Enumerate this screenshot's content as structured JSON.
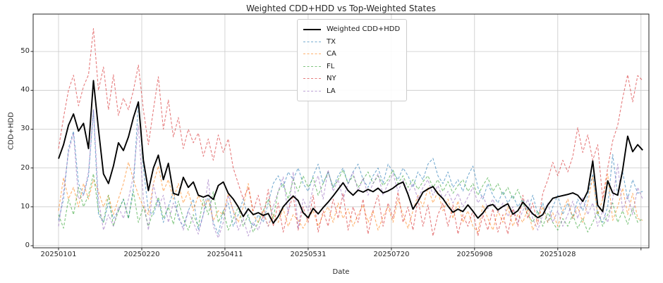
{
  "title": "Weighted CDD+HDD vs Top-Weighted States",
  "chart_data": {
    "type": "line",
    "title": "Weighted CDD+HDD vs Top-Weighted States",
    "xlabel": "Date",
    "ylabel": "CDD+HDD",
    "grid": "on",
    "legend_position": "upper center",
    "x_start_date": "20250101",
    "x_step_days": 3,
    "xlim": [
      -15.25,
      354.75
    ],
    "ylim": [
      -0.54,
      59.62
    ],
    "y_ticks": [
      0,
      10,
      20,
      30,
      40,
      50
    ],
    "y_tick_labels": [
      "0",
      "10",
      "20",
      "30",
      "40",
      "50"
    ],
    "x_ticks": [
      {
        "day": 0,
        "label": "20250101"
      },
      {
        "day": 50,
        "label": "20250220"
      },
      {
        "day": 100,
        "label": "20250411"
      },
      {
        "day": 150,
        "label": "20250531"
      },
      {
        "day": 200,
        "label": "20250720"
      },
      {
        "day": 250,
        "label": "20250908"
      },
      {
        "day": 300,
        "label": "20251028"
      },
      {
        "day": 350,
        "label": ""
      }
    ],
    "series": [
      {
        "name": "Weighted CDD+HDD",
        "color": "#000000",
        "opacity": 1,
        "dash": false,
        "width": 1.9,
        "values": [
          22.4,
          26,
          31,
          33.9,
          29.5,
          31.5,
          25,
          42.5,
          30,
          18.5,
          16,
          20.5,
          26.5,
          24.5,
          28,
          33,
          37,
          22,
          14.2,
          20,
          23.3,
          17,
          21.2,
          13.5,
          13,
          17.6,
          15,
          16.4,
          13,
          12.5,
          13,
          11.9,
          15.5,
          16.4,
          13.5,
          12,
          10,
          7.5,
          9.5,
          8,
          8.5,
          7.8,
          8.3,
          5.8,
          7.5,
          10,
          11.5,
          12.8,
          11.6,
          8.5,
          7.2,
          9.6,
          8.2,
          9.8,
          11.2,
          12.8,
          14.5,
          16.2,
          14.2,
          13,
          14.3,
          13.8,
          14.5,
          13.9,
          14.8,
          13.6,
          14.1,
          14.8,
          15.8,
          16.4,
          13.2,
          9.4,
          11.4,
          13.8,
          14.6,
          15.2,
          13.4,
          12.1,
          10.2,
          8.6,
          9.4,
          8.8,
          10.5,
          8.9,
          7.1,
          8.4,
          10.2,
          10.6,
          9.2,
          10.1,
          10.8,
          8.1,
          9,
          11.2,
          9.8,
          8.2,
          7.2,
          8,
          10.5,
          12.2,
          12.6,
          12.9,
          13.2,
          13.6,
          13,
          11.4,
          14,
          21.8,
          10.4,
          8.8,
          16.7,
          13.6,
          13,
          19.5,
          28.2,
          24.2,
          26,
          24.6
        ]
      },
      {
        "name": "TX",
        "color": "#1f77b4",
        "opacity": 0.6,
        "dash": true,
        "width": 1.1,
        "values": [
          6.5,
          12,
          25,
          29.5,
          16,
          13,
          18,
          35,
          8,
          6,
          11,
          7,
          9,
          12,
          7,
          15,
          37,
          20,
          9,
          8,
          12,
          6,
          10,
          14,
          7,
          5,
          9,
          12,
          4,
          8,
          13,
          6,
          3,
          9,
          11,
          5,
          8,
          12,
          7,
          5,
          8,
          6,
          11,
          16,
          18,
          15,
          19,
          17,
          20,
          16,
          14,
          18,
          21,
          16,
          19,
          15,
          18,
          20,
          16,
          19,
          21,
          17,
          15,
          18,
          20,
          16,
          21,
          19,
          17,
          20,
          18,
          15,
          19,
          17,
          21,
          22.5,
          18,
          16,
          19,
          15,
          17,
          14,
          18,
          20.5,
          15,
          12,
          16,
          13,
          11,
          14,
          11,
          13,
          10,
          12,
          9,
          13,
          8,
          11,
          6,
          10,
          13,
          8,
          11,
          7,
          12,
          9,
          13,
          18.5,
          8,
          6,
          10,
          23.5,
          13,
          19,
          12,
          17,
          13.5,
          14
        ]
      },
      {
        "name": "CA",
        "color": "#ff7f0e",
        "opacity": 0.6,
        "dash": true,
        "width": 1.1,
        "values": [
          9,
          17.5,
          12,
          15,
          10,
          16,
          12,
          17,
          14,
          10,
          13,
          8,
          12,
          16,
          21.5,
          17,
          13,
          10,
          8,
          16,
          20.5,
          14,
          17,
          12,
          16,
          11,
          14,
          9,
          13,
          10,
          12,
          6.5,
          9,
          8,
          13.5,
          9,
          6,
          10,
          16,
          8,
          6,
          9,
          5,
          8,
          6,
          9.5,
          5,
          8,
          6.5,
          4.5,
          7,
          9,
          5,
          8,
          10,
          6,
          11,
          7,
          9.5,
          5,
          8,
          10.5,
          6,
          9,
          4,
          7.5,
          10,
          6,
          12,
          8,
          4.5,
          9,
          13,
          10,
          15,
          11,
          14,
          9,
          12,
          7,
          11.5,
          6,
          9,
          5,
          3.5,
          10.5,
          7,
          4,
          9,
          6,
          10,
          5,
          8,
          6,
          9.5,
          4,
          7,
          10,
          6,
          8.5,
          5,
          9,
          12,
          7,
          10,
          6,
          11,
          17.8,
          8,
          12,
          18.5,
          6.5,
          10,
          14.8,
          8,
          13.5,
          7,
          6.5
        ]
      },
      {
        "name": "FL",
        "color": "#2ca02c",
        "opacity": 0.6,
        "dash": true,
        "width": 1.1,
        "values": [
          8,
          4.5,
          12,
          8,
          15,
          10,
          13,
          18.5,
          9,
          6,
          13,
          5,
          9,
          12,
          7,
          14,
          6,
          10,
          5,
          9,
          12.5,
          7,
          10,
          5.5,
          11.5,
          7,
          4,
          8,
          5,
          12,
          8,
          13.9,
          6,
          9,
          4,
          7,
          10,
          5,
          8,
          3.5,
          6,
          9,
          12,
          7,
          14,
          16,
          12,
          17,
          14,
          18,
          15,
          17.5,
          13,
          16,
          19,
          15,
          17,
          19.5,
          16,
          18,
          15,
          17,
          19,
          16,
          18,
          15.5,
          17,
          19.5,
          16,
          18,
          15,
          17,
          14.5,
          16.5,
          18,
          15,
          17,
          14,
          16.5,
          13.5,
          15.5,
          17,
          14,
          16,
          13,
          15.5,
          17.5,
          14,
          16,
          13,
          15,
          12,
          14.5,
          11,
          8,
          6,
          9,
          5,
          8.5,
          6,
          4,
          7,
          5,
          8,
          4.5,
          7,
          3.5,
          6,
          9,
          5,
          8,
          11,
          6,
          9,
          5.5,
          9.7,
          6,
          7
        ]
      },
      {
        "name": "NY",
        "color": "#d62728",
        "opacity": 0.6,
        "dash": true,
        "width": 1.1,
        "values": [
          25,
          33,
          40,
          43.9,
          36,
          41,
          44,
          55.9,
          40,
          46,
          35,
          44,
          33.5,
          38,
          35,
          40,
          46.5,
          35,
          26,
          35,
          43.5,
          30,
          37.5,
          28,
          33,
          25,
          30,
          26.5,
          29,
          23,
          27.5,
          22,
          28.5,
          24,
          27.5,
          20,
          16,
          12,
          15,
          9,
          13,
          7,
          14.5,
          5,
          11,
          3.5,
          9,
          13,
          4,
          10,
          6,
          13,
          3.5,
          9,
          5,
          12,
          7,
          13.5,
          4,
          10,
          6,
          12,
          3,
          9,
          13,
          5,
          11,
          7,
          13.8,
          6,
          10,
          4,
          12,
          5,
          10.5,
          2.5,
          8,
          11,
          5,
          10.5,
          3,
          8,
          5,
          9,
          2.5,
          8,
          4,
          9.5,
          3.5,
          8,
          3,
          9.5,
          5,
          13,
          7,
          11,
          5.5,
          13.5,
          17,
          21.5,
          18,
          22,
          19,
          23,
          30.4,
          24,
          28.5,
          22,
          26,
          12,
          20,
          27,
          31,
          38,
          44,
          37,
          43.8,
          42.5
        ]
      },
      {
        "name": "LA",
        "color": "#9467bd",
        "opacity": 0.6,
        "dash": true,
        "width": 1.1,
        "values": [
          5,
          14,
          24,
          29,
          12,
          13,
          19,
          35,
          12,
          4,
          8,
          5,
          10,
          7,
          12,
          18,
          31,
          12,
          4,
          15.8,
          10,
          13,
          6,
          11,
          8,
          4,
          9,
          6,
          3,
          8,
          17,
          5,
          2,
          6,
          13,
          9,
          4,
          7,
          2.5,
          6,
          4,
          8,
          5,
          10,
          14,
          17.7,
          8,
          19,
          4.5,
          12,
          9,
          15,
          18,
          12,
          19.5,
          14,
          17,
          12,
          16,
          19,
          14,
          17.5,
          13,
          16,
          18.5,
          13,
          16,
          18.5,
          14,
          17,
          13.5,
          16,
          12,
          15,
          17,
          13,
          15.5,
          12,
          14,
          11,
          13.5,
          10,
          12.5,
          15,
          11,
          13,
          9.5,
          12,
          8.5,
          11,
          7.5,
          10,
          6,
          9,
          12,
          7,
          4,
          8,
          11,
          6,
          9,
          5,
          8,
          11.5,
          7,
          12.5,
          8,
          11,
          5,
          9,
          6,
          12,
          21,
          9,
          13,
          8,
          15,
          12
        ]
      }
    ]
  }
}
